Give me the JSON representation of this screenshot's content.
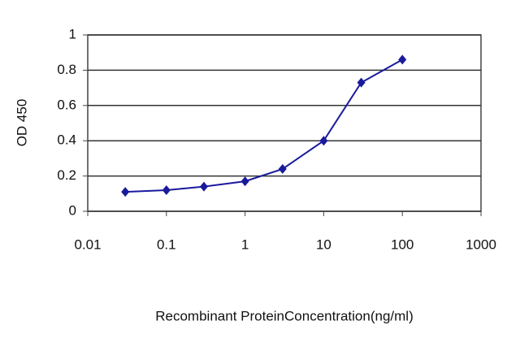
{
  "chart_data": {
    "type": "line",
    "x": [
      0.03,
      0.1,
      0.3,
      1,
      3,
      10,
      30,
      100
    ],
    "series": [
      {
        "color": "#1a1a9c",
        "values": [
          0.11,
          0.12,
          0.14,
          0.17,
          0.24,
          0.4,
          0.73,
          0.86
        ]
      }
    ],
    "xlabel": "Recombinant ProteinConcentration(ng/ml)",
    "ylabel": "OD 450",
    "xscale": "log",
    "xlim": [
      0.01,
      1000
    ],
    "xticks": [
      0.01,
      0.1,
      1,
      10,
      100,
      1000
    ],
    "ylim": [
      0,
      1
    ],
    "yticks": [
      0,
      0.2,
      0.4,
      0.6,
      0.8,
      1
    ],
    "grid": true
  }
}
